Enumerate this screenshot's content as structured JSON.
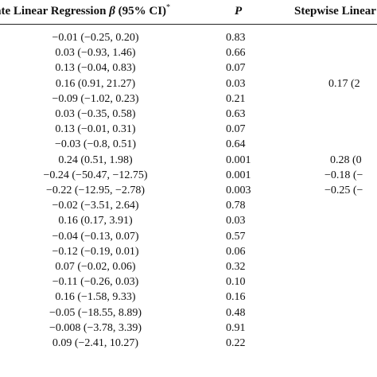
{
  "table": {
    "header": {
      "univariate_text": "ate Linear Regression ",
      "beta_symbol": "β",
      "ci_text": " (95% CI)",
      "ci_marker": "*",
      "p_label": "P",
      "stepwise_text": "Stepwise Linear R"
    },
    "rows": [
      {
        "beta_ci": "−0.01 (−0.25, 0.20)",
        "p": "0.83",
        "stepwise": ""
      },
      {
        "beta_ci": "0.03 (−0.93, 1.46)",
        "p": "0.66",
        "stepwise": ""
      },
      {
        "beta_ci": "0.13 (−0.04, 0.83)",
        "p": "0.07",
        "stepwise": ""
      },
      {
        "beta_ci": "0.16 (0.91, 21.27)",
        "p": "0.03",
        "stepwise": "0.17 (2"
      },
      {
        "beta_ci": "−0.09 (−1.02, 0.23)",
        "p": "0.21",
        "stepwise": ""
      },
      {
        "beta_ci": "0.03 (−0.35, 0.58)",
        "p": "0.63",
        "stepwise": ""
      },
      {
        "beta_ci": "0.13 (−0.01, 0.31)",
        "p": "0.07",
        "stepwise": ""
      },
      {
        "beta_ci": "−0.03 (−0.8, 0.51)",
        "p": "0.64",
        "stepwise": ""
      },
      {
        "beta_ci": "0.24 (0.51, 1.98)",
        "p": "0.001",
        "stepwise": "0.28 (0"
      },
      {
        "beta_ci": "−0.24 (−50.47, −12.75)",
        "p": "0.001",
        "stepwise": "−0.18 (−"
      },
      {
        "beta_ci": "−0.22 (−12.95, −2.78)",
        "p": "0.003",
        "stepwise": "−0.25 (−"
      },
      {
        "beta_ci": "−0.02 (−3.51, 2.64)",
        "p": "0.78",
        "stepwise": ""
      },
      {
        "beta_ci": "0.16 (0.17, 3.91)",
        "p": "0.03",
        "stepwise": ""
      },
      {
        "beta_ci": "−0.04 (−0.13, 0.07)",
        "p": "0.57",
        "stepwise": ""
      },
      {
        "beta_ci": "−0.12 (−0.19, 0.01)",
        "p": "0.06",
        "stepwise": ""
      },
      {
        "beta_ci": "0.07 (−0.02, 0.06)",
        "p": "0.32",
        "stepwise": ""
      },
      {
        "beta_ci": "−0.11 (−0.26, 0.03)",
        "p": "0.10",
        "stepwise": ""
      },
      {
        "beta_ci": "0.16 (−1.58, 9.33)",
        "p": "0.16",
        "stepwise": ""
      },
      {
        "beta_ci": "−0.05 (−18.55, 8.89)",
        "p": "0.48",
        "stepwise": ""
      },
      {
        "beta_ci": "−0.008 (−3.78, 3.39)",
        "p": "0.91",
        "stepwise": ""
      },
      {
        "beta_ci": "0.09 (−2.41, 10.27)",
        "p": "0.22",
        "stepwise": ""
      }
    ]
  }
}
